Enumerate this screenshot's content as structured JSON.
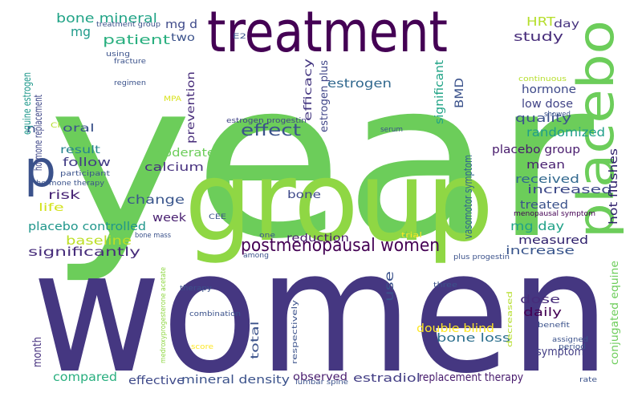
{
  "words": [
    {
      "text": "year",
      "color": "#6ccd5a"
    },
    {
      "text": "women",
      "color": "#453781"
    },
    {
      "text": "treatment",
      "color": "#440154"
    },
    {
      "text": "group",
      "color": "#8fd744"
    },
    {
      "text": "placebo",
      "color": "#6ccd5a"
    },
    {
      "text": "p",
      "color": "#3b528b"
    },
    {
      "text": "postmenopausal women",
      "color": "#440154"
    },
    {
      "text": "effect",
      "color": "#3b528b"
    },
    {
      "text": "estrogen",
      "color": "#31688e"
    },
    {
      "text": "bone mineral",
      "color": "#20a386"
    },
    {
      "text": "patient",
      "color": "#29af7f"
    },
    {
      "text": "study",
      "color": "#472c7a"
    },
    {
      "text": "change",
      "color": "#39558c"
    },
    {
      "text": "week",
      "color": "#481f70"
    },
    {
      "text": "baseline",
      "color": "#bddf26"
    },
    {
      "text": "mg",
      "color": "#1f9a8a"
    },
    {
      "text": "mg d",
      "color": "#3e4989"
    },
    {
      "text": "two",
      "color": "#3b528b"
    },
    {
      "text": "HRT",
      "color": "#b5de2b"
    },
    {
      "text": "day",
      "color": "#46337f"
    },
    {
      "text": "hormone",
      "color": "#3e4989"
    },
    {
      "text": "low dose",
      "color": "#414487"
    },
    {
      "text": "quality",
      "color": "#3b528b"
    },
    {
      "text": "randomized",
      "color": "#1f9e89"
    },
    {
      "text": "placebo group",
      "color": "#481b6d"
    },
    {
      "text": "mean",
      "color": "#481f70"
    },
    {
      "text": "received",
      "color": "#31688e"
    },
    {
      "text": "increased",
      "color": "#3e4989"
    },
    {
      "text": "treated",
      "color": "#3b528b"
    },
    {
      "text": "mg day",
      "color": "#1fa187"
    },
    {
      "text": "measured",
      "color": "#2d1e6b"
    },
    {
      "text": "increase",
      "color": "#39558c"
    },
    {
      "text": "significantly",
      "color": "#472d7b"
    },
    {
      "text": "placebo controlled",
      "color": "#1f968b"
    },
    {
      "text": "risk",
      "color": "#482475"
    },
    {
      "text": "life",
      "color": "#d2e21b"
    },
    {
      "text": "calcium",
      "color": "#46307e"
    },
    {
      "text": "moderate",
      "color": "#6ccd5a"
    },
    {
      "text": "follow",
      "color": "#433e85"
    },
    {
      "text": "result",
      "color": "#26828e"
    },
    {
      "text": "oral",
      "color": "#3b528b"
    },
    {
      "text": "n",
      "color": "#3b528b"
    },
    {
      "text": "reduction",
      "color": "#481b6d"
    },
    {
      "text": "bone",
      "color": "#3e4989"
    },
    {
      "text": "use",
      "color": "#3b528b"
    },
    {
      "text": "dose",
      "color": "#472d7b"
    },
    {
      "text": "daily",
      "color": "#440154"
    },
    {
      "text": "bone loss",
      "color": "#2d708e"
    },
    {
      "text": "double blind",
      "color": "#fde725"
    },
    {
      "text": "symptom",
      "color": "#433e85"
    },
    {
      "text": "compared",
      "color": "#29af7f"
    },
    {
      "text": "effective",
      "color": "#3e4989"
    },
    {
      "text": "mineral density",
      "color": "#3b528b"
    },
    {
      "text": "observed",
      "color": "#481b6d"
    },
    {
      "text": "estradiol",
      "color": "#433e85"
    },
    {
      "text": "replacement therapy",
      "color": "#481b6d"
    },
    {
      "text": "month",
      "color": "#46307e"
    },
    {
      "text": "total",
      "color": "#3b528b"
    },
    {
      "text": "conjugated equine",
      "color": "#6ccd5a"
    },
    {
      "text": "hot flushes",
      "color": "#2d1e6b"
    },
    {
      "text": "vasomotor symptom",
      "color": "#31688e"
    },
    {
      "text": "BMD",
      "color": "#3b528b"
    },
    {
      "text": "significant",
      "color": "#20a386"
    },
    {
      "text": "efficacy",
      "color": "#453781"
    },
    {
      "text": "estrogen plus",
      "color": "#404688"
    },
    {
      "text": "prevention",
      "color": "#472c7a"
    },
    {
      "text": "equine estrogen",
      "color": "#1f988b"
    },
    {
      "text": "hormone replacement",
      "color": "#3f4788"
    },
    {
      "text": "estrogen progestin",
      "color": "#414487"
    },
    {
      "text": "medroxyprogesterone acetate",
      "color": "#8fd744"
    },
    {
      "text": "treatment group",
      "color": "#3b528b"
    },
    {
      "text": "E2",
      "color": "#3b528b"
    },
    {
      "text": "using",
      "color": "#3b528b"
    },
    {
      "text": "fracture",
      "color": "#3b528b"
    },
    {
      "text": "regimen",
      "color": "#3b528b"
    },
    {
      "text": "MPA",
      "color": "#d8e219"
    },
    {
      "text": "CI",
      "color": "#b5de2b"
    },
    {
      "text": "participant",
      "color": "#3b528b"
    },
    {
      "text": "hormone therapy",
      "color": "#3b528b"
    },
    {
      "text": "continuous",
      "color": "#b5de2b"
    },
    {
      "text": "showed",
      "color": "#3b528b"
    },
    {
      "text": "serum",
      "color": "#3b528b"
    },
    {
      "text": "CEE",
      "color": "#3b528b"
    },
    {
      "text": "menopausal symptom",
      "color": "#440154"
    },
    {
      "text": "bone mass",
      "color": "#3b528b"
    },
    {
      "text": "one",
      "color": "#3b528b"
    },
    {
      "text": "trial",
      "color": "#fde725"
    },
    {
      "text": "among",
      "color": "#3b528b"
    },
    {
      "text": "plus progestin",
      "color": "#3b528b"
    },
    {
      "text": "therapy",
      "color": "#3b528b"
    },
    {
      "text": "three",
      "color": "#3b528b"
    },
    {
      "text": "decreased",
      "color": "#b5de2b"
    },
    {
      "text": "combination",
      "color": "#3b528b"
    },
    {
      "text": "respectively",
      "color": "#3b528b"
    },
    {
      "text": "benefit",
      "color": "#3b528b"
    },
    {
      "text": "assigned",
      "color": "#3b528b"
    },
    {
      "text": "period",
      "color": "#3b528b"
    },
    {
      "text": "score",
      "color": "#fde725"
    },
    {
      "text": "lumbar spine",
      "color": "#3b528b"
    },
    {
      "text": "rate",
      "color": "#3b528b"
    }
  ]
}
